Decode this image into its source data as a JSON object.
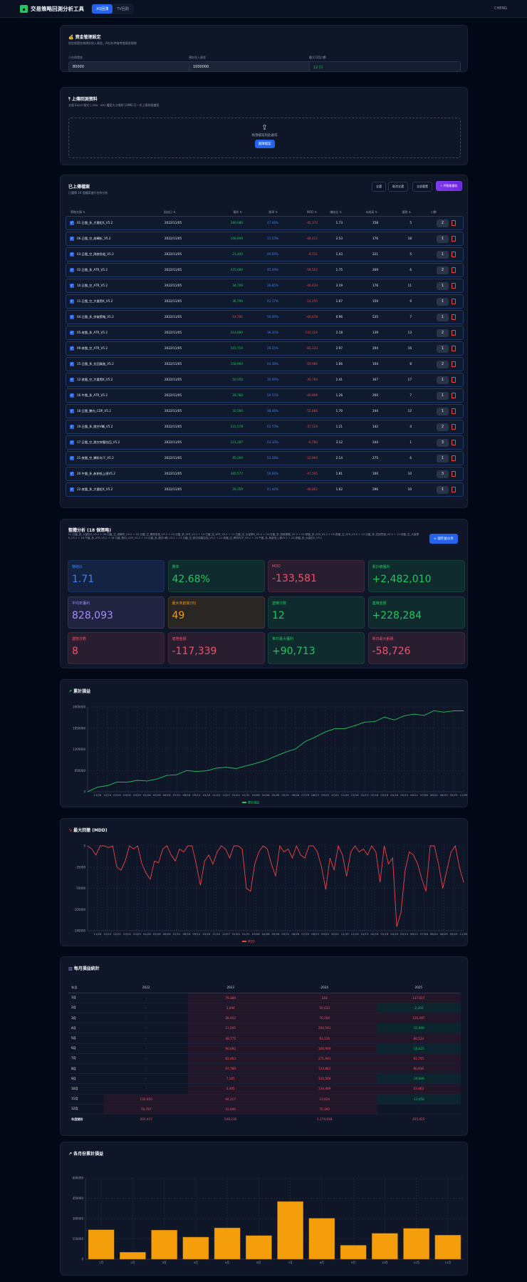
{
  "header": {
    "title": "交易策略回測分析工具",
    "tabs": [
      {
        "label": "XQ回測",
        "active": true
      },
      {
        "label": "TV回測",
        "active": false
      }
    ],
    "user": "CHENG"
  },
  "capital": {
    "title": "資金管理設定",
    "subtitle": "設定保證金和預計投入資金，AI分析時會考慮資金限制",
    "fields": [
      {
        "label": "小台保證金",
        "value": "80000"
      },
      {
        "label": "預計投入資金",
        "value": "1000000"
      },
      {
        "label": "最大可用口數",
        "value": "12 口"
      }
    ]
  },
  "upload": {
    "title": "上傳回測資料",
    "subtitle": "支援 Excel 格式 (.xlsx, .xls) 檔案大小限制 10MB,可一次上傳多個檔案",
    "drop_text": "拖曳檔案到此處或",
    "choose_label": "選擇檔案"
  },
  "files": {
    "title": "已上傳檔案",
    "subtitle": "已選擇 18 個檔案進行合併分析",
    "buttons": {
      "select_all": "全選",
      "deselect_all": "取消全選",
      "reset_all": "全部重置",
      "ai": "AI智能優化"
    },
    "columns": [
      "策略名稱 ⇅",
      "起始日 ⇅",
      "獲利 ⇅",
      "勝率 ⇅",
      "MDD ⇅",
      "賺賠比 ⇅",
      "未創高 ⇅",
      "連敗 ⇅",
      "口數"
    ],
    "rows": [
      [
        "01.日盤_多_大量紅K_V5.2",
        "2022/11/05",
        "260,680",
        "47.46%",
        "-42,370",
        "1.73",
        "158",
        "5",
        "2"
      ],
      [
        "06.日盤_空_前轉折_V5.2",
        "2022/11/05",
        "100,499",
        "31.53%",
        "-46,412",
        "2.53",
        "176",
        "18",
        "1"
      ],
      [
        "03.日盤_空_隔夜急殺_V5.2",
        "2022/11/05",
        "21,400",
        "49.60%",
        "-9,711",
        "1.43",
        "221",
        "5",
        "1"
      ],
      [
        "02.日盤_多_ATR_V5.2",
        "2022/11/05",
        "425,690",
        "45.94%",
        "-58,552",
        "1.75",
        "269",
        "6",
        "2"
      ],
      [
        "10.日盤_空_ATR_V5.2",
        "2022/11/05",
        "34,709",
        "26.85%",
        "-46,433",
        "3.19",
        "176",
        "11",
        "1"
      ],
      [
        "11.日盤_空_大量黑K_V5.2",
        "2022/11/05",
        "36,790",
        "42.17%",
        "-14,255",
        "1.67",
        "159",
        "9",
        "1"
      ],
      [
        "04.日盤_多_突破策略_V5.2",
        "2022/11/05",
        "-14,791",
        "50.00%",
        "-66,678",
        "0.96",
        "535",
        "7",
        "1"
      ],
      [
        "05.夜盤_多_ATR_V5.2",
        "2022/11/05",
        "214,690",
        "36.32%",
        "-110,326",
        "2.18",
        "139",
        "13",
        "2"
      ],
      [
        "09.夜盤_空_ATR_V5.2",
        "2022/11/05",
        "101,710",
        "29.35%",
        "-65,333",
        "2.97",
        "204",
        "16",
        "1"
      ],
      [
        "15.日盤_多_拉回買進_V5.2",
        "2022/11/05",
        "158,960",
        "44.38%",
        "-59,980",
        "1.66",
        "104",
        "8",
        "2"
      ],
      [
        "12.夜盤_空_大量黑K_V5.2",
        "2022/11/05",
        "50,550",
        "35.00%",
        "-30,784",
        "2.41",
        "167",
        "17",
        "1"
      ],
      [
        "16.午盤_多_ATR_V5.2",
        "2022/11/05",
        "28,780",
        "50.52%",
        "-40,906",
        "1.26",
        "200",
        "7",
        "1"
      ],
      [
        "18.日盤_雙向_CDP_V5.2",
        "2022/11/05",
        "32,560",
        "38.46%",
        "-52,686",
        "1.70",
        "244",
        "12",
        "1"
      ],
      [
        "19.日盤_多_跳空V轉_V5.2",
        "2022/11/05",
        "231,578",
        "61.73%",
        "-37,524",
        "1.21",
        "142",
        "4",
        "2"
      ],
      [
        "17.日盤_空_跳空突襲拉回_V5.2",
        "2022/11/05",
        "121,287",
        "63.33%",
        "-6,780",
        "3.12",
        "244",
        "1",
        "3"
      ],
      [
        "21.夜盤_空_轉折向下_V5.2",
        "2022/11/05",
        "85,269",
        "52.38%",
        "-22,904",
        "2.14",
        "275",
        "6",
        "1"
      ],
      [
        "20.午盤_多_新創低上漲V5.2",
        "2022/11/05",
        "365,577",
        "50.00%",
        "-47,595",
        "1.81",
        "100",
        "10",
        "3"
      ],
      [
        "22.夜盤_多_大量紅K_V5.2",
        "2022/11/05",
        "29,359",
        "41.42%",
        "-46,802",
        "1.62",
        "296",
        "10",
        "1"
      ]
    ]
  },
  "analysis": {
    "title": "整體分析 (18 個策略)",
    "strategies": "01.日盤_多_大量紅K_V5.2 + 06.日盤_空_前轉折_V5.2 + 03.日盤_空_隔夜急殺_V5.2 + 02.日盤_多_ATR_V5.2 + 10.日盤_空_ATR_V5.2 + 11.日盤_空_大量黑K_V5.2 + 04.日盤_多_突破策略_V5.2 + 05.夜盤_多_ATR_V5.2 + 09.夜盤_空_ATR_V5.2 + 15.日盤_多_拉回買進_V5.2 + 12.夜盤_空_大量黑K_V5.2 + 16.午盤_多_ATR_V5.2 + 18.日盤_雙向_CDP_V5.2 + 19.日盤_多_跳空V轉_V5.2 + 17.日盤_空_跳空突襲拉回_V5.2 + 21.夜盤_空_轉折向下_V5.2 + 20.午盤_多_新創低上漲V5.2 + 22.夜盤_多_大量紅K_V5.2",
    "share_label": "儲存並分享",
    "stats": [
      {
        "label": "賺賠比",
        "value": "1.71",
        "color": "#3b82f6"
      },
      {
        "label": "勝率",
        "value": "42.68%",
        "color": "#22c55e"
      },
      {
        "label": "MDD",
        "value": "-133,581",
        "color": "#f05268"
      },
      {
        "label": "累計總獲利",
        "value": "+2,482,010",
        "color": "#22c55e"
      },
      {
        "label": "平均年獲利",
        "value": "828,093",
        "color": "#a78bfa"
      },
      {
        "label": "最大未創高(日)",
        "value": "49",
        "color": "#f59e0b"
      },
      {
        "label": "連賺次數",
        "value": "12",
        "color": "#22c55e"
      },
      {
        "label": "連賺金額",
        "value": "+228,284",
        "color": "#22c55e"
      },
      {
        "label": "連賠次數",
        "value": "8",
        "color": "#f05268"
      },
      {
        "label": "連賠金額",
        "value": "-117,339",
        "color": "#f05268"
      },
      {
        "label": "單日最大獲利",
        "value": "+90,713",
        "color": "#22c55e"
      },
      {
        "label": "單日最大虧損",
        "value": "-58,726",
        "color": "#f05268"
      }
    ]
  },
  "monthly": {
    "title": "每月損益統計",
    "columns": [
      "年月",
      "2022",
      "2023",
      "2024",
      "2025"
    ],
    "rows": [
      [
        "1月",
        "-",
        "79,380",
        "318",
        "137,927"
      ],
      [
        "2月",
        "-",
        "3,094",
        "50,633",
        "-2,265"
      ],
      [
        "3月",
        "-",
        "28,452",
        "70,264",
        "116,487"
      ],
      [
        "4月",
        "-",
        "11,545",
        "204,541",
        "-52,809"
      ],
      [
        "5月",
        "-",
        "48,775",
        "93,139",
        "89,534"
      ],
      [
        "6月",
        "-",
        "90,092",
        "100,949",
        "-16,621"
      ],
      [
        "7月",
        "-",
        "62,463",
        "271,941",
        "91,755"
      ],
      [
        "8月",
        "-",
        "87,780",
        "133,842",
        "80,816"
      ],
      [
        "9月",
        "-",
        "7,181",
        "125,568",
        "-29,806"
      ],
      [
        "10月",
        "-",
        "3,405",
        "134,409",
        "53,463"
      ],
      [
        "11月",
        "132,650",
        "94,217",
        "13,924",
        "-13,056"
      ],
      [
        "12月",
        "70,787",
        "31,846",
        "75,390",
        "-"
      ]
    ],
    "total": [
      "年度總計",
      "203,437",
      "548,230",
      "1,274,918",
      "455,425"
    ]
  },
  "chart_data": [
    {
      "type": "line",
      "title": "累計損益",
      "legend": "累計損益",
      "legend_position": "bottom",
      "color": "#22c55e",
      "grid": true,
      "ylim": [
        0,
        2600000
      ],
      "yticks": [
        0,
        650000,
        1300000,
        1950000,
        2600000
      ],
      "x": [
        "",
        "11/28",
        "12/23",
        "02/01",
        "03/02",
        "03/29",
        "04/26",
        "05/26",
        "06/26",
        "07/21",
        "08/18",
        "09/14",
        "10/16",
        "11/10",
        "12/07",
        "01/04",
        "01/31",
        "03/08",
        "04/08",
        "05/06",
        "05/31",
        "06/28",
        "07/29",
        "08/23",
        "09/20",
        "10/22",
        "11/19",
        "12/16",
        "01/13",
        "02/18",
        "03/18",
        "04/16",
        "05/14",
        "06/11",
        "07/08",
        "08/04",
        "08/29",
        "09/25",
        "11/05"
      ],
      "values": [
        0,
        140000,
        185000,
        300000,
        290000,
        350000,
        330000,
        390000,
        500000,
        520000,
        650000,
        620000,
        640000,
        720000,
        750000,
        710000,
        790000,
        870000,
        960000,
        1090000,
        1215000,
        1310000,
        1540000,
        1675000,
        1830000,
        1935000,
        1935000,
        2025000,
        2135000,
        2150000,
        2285000,
        2200000,
        2330000,
        2380000,
        2340000,
        2485000,
        2440000,
        2480000,
        2482010
      ]
    },
    {
      "type": "line",
      "title": "最大回撤 (MDD)",
      "legend": "MDD",
      "legend_position": "bottom",
      "color": "#ef4444",
      "grid": true,
      "ylim": [
        -140000,
        0
      ],
      "yticks": [
        -140000,
        -105000,
        -70000,
        -35000,
        0
      ],
      "values": [
        0,
        -5000,
        -15000,
        0,
        0,
        -3000,
        0,
        -35000,
        -40000,
        -25000,
        0,
        -5000,
        0,
        -30000,
        -45000,
        -55000,
        -25000,
        -28000,
        -5000,
        0,
        -15000,
        -25000,
        -5000,
        -10000,
        0,
        0,
        -30000,
        -65000,
        -25000,
        -15000,
        -30000,
        -10000,
        0,
        -5000,
        -20000,
        0,
        0,
        -5000,
        -70000,
        -75000,
        -30000,
        -10000,
        0,
        -5000,
        -30000,
        -50000,
        0,
        -10000,
        -5000,
        -20000,
        0,
        -15000,
        -20000,
        0,
        0,
        -10000,
        -35000,
        -72000,
        -20000,
        -40000,
        0,
        -15000,
        -50000,
        -10000,
        0,
        -10000,
        -5000,
        -15000,
        0,
        -10000,
        -60000,
        0,
        -30000,
        -20000,
        -133581,
        -110000,
        -40000,
        -10000,
        -15000,
        -30000,
        -55000,
        -75000,
        0,
        0,
        -30000,
        -70000,
        -40000,
        -10000,
        0,
        -35000,
        -60000
      ]
    },
    {
      "type": "bar",
      "title": "各月份累計損益",
      "color": "#f59e0b",
      "grid": true,
      "ylim": [
        0,
        600000
      ],
      "yticks": [
        0,
        150000,
        300000,
        450000,
        600000
      ],
      "categories": [
        "1月",
        "2月",
        "3月",
        "4月",
        "5月",
        "6月",
        "7月",
        "8月",
        "9月",
        "10月",
        "11月",
        "12月"
      ],
      "values": [
        217625,
        51462,
        215203,
        163277,
        231448,
        174420,
        426159,
        302438,
        102943,
        191277,
        227735,
        178023
      ]
    }
  ]
}
